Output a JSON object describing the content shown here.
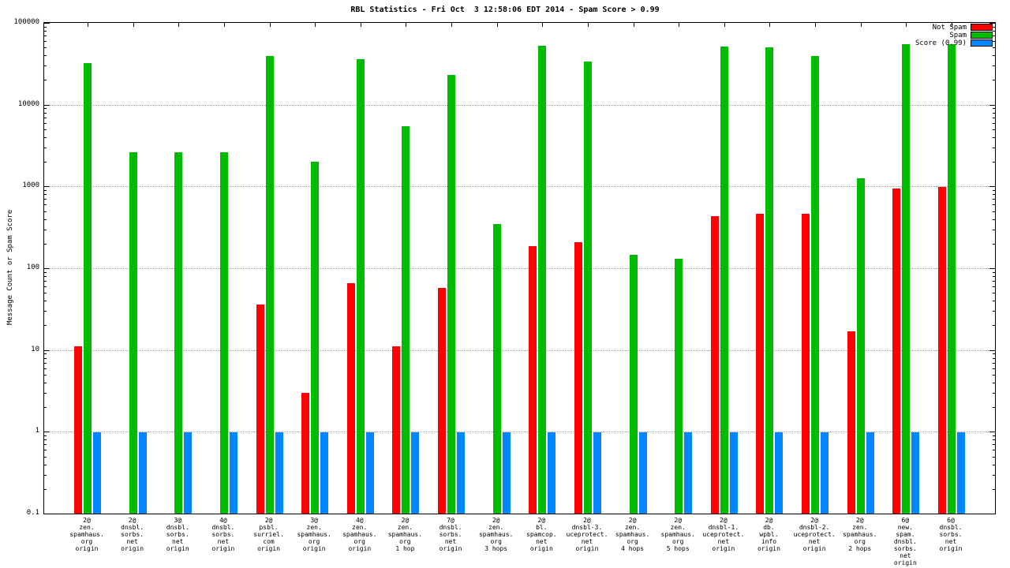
{
  "chart_data": {
    "type": "bar",
    "title": "RBL Statistics - Fri Oct  3 12:58:06 EDT 2014 - Spam Score > 0.99",
    "ylabel": "Message Count or Spam Score",
    "y_scale": "log",
    "ylim": [
      0.1,
      100000
    ],
    "yticks": [
      0.1,
      1,
      10,
      100,
      1000,
      10000,
      100000
    ],
    "grid": "horizontal-dotted",
    "legend_position": "top-right-inside",
    "categories": [
      [
        "2@",
        "zen.",
        "spamhaus.",
        "org",
        "origin"
      ],
      [
        "2@",
        "dnsbl.",
        "sorbs.",
        "net",
        "origin"
      ],
      [
        "3@",
        "dnsbl.",
        "sorbs.",
        "net",
        "origin"
      ],
      [
        "4@",
        "dnsbl.",
        "sorbs.",
        "net",
        "origin"
      ],
      [
        "2@",
        "psbl.",
        "surriel.",
        "com",
        "origin"
      ],
      [
        "3@",
        "zen.",
        "spamhaus.",
        "org",
        "origin"
      ],
      [
        "4@",
        "zen.",
        "spamhaus.",
        "org",
        "origin"
      ],
      [
        "2@",
        "zen.",
        "spamhaus.",
        "org",
        "1 hop"
      ],
      [
        "7@",
        "dnsbl.",
        "sorbs.",
        "net",
        "origin"
      ],
      [
        "2@",
        "zen.",
        "spamhaus.",
        "org",
        "3 hops"
      ],
      [
        "2@",
        "bl.",
        "spamcop.",
        "net",
        "origin"
      ],
      [
        "2@",
        "dnsbl-3.",
        "uceprotect.",
        "net",
        "origin"
      ],
      [
        "2@",
        "zen.",
        "spamhaus.",
        "org",
        "4 hops"
      ],
      [
        "2@",
        "zen.",
        "spamhaus.",
        "org",
        "5 hops"
      ],
      [
        "2@",
        "dnsbl-1.",
        "uceprotect.",
        "net",
        "origin"
      ],
      [
        "2@",
        "db.",
        "wpbl.",
        "info",
        "origin"
      ],
      [
        "2@",
        "dnsbl-2.",
        "uceprotect.",
        "net",
        "origin"
      ],
      [
        "2@",
        "zen.",
        "spamhaus.",
        "org",
        "2 hops"
      ],
      [
        "6@",
        "new.",
        "spam.",
        "dnsbl.",
        "sorbs.",
        "net",
        "origin"
      ],
      [
        "6@",
        "dnsbl.",
        "sorbs.",
        "net",
        "origin"
      ]
    ],
    "series": [
      {
        "name": "Not Spam",
        "color": "#ff0000",
        "values": [
          11,
          null,
          null,
          null,
          36,
          3,
          65,
          11,
          58,
          null,
          185,
          210,
          null,
          null,
          430,
          460,
          460,
          17,
          950,
          975
        ]
      },
      {
        "name": "Spam",
        "color": "#00bb00",
        "values": [
          32000,
          2600,
          2600,
          2600,
          39000,
          2000,
          36000,
          5500,
          23000,
          350,
          52000,
          34000,
          145,
          130,
          51000,
          50000,
          39000,
          1250,
          55000,
          55000
        ]
      },
      {
        "name": "Score (0.99)",
        "color": "#0086ff",
        "values": [
          0.99,
          0.99,
          0.99,
          0.99,
          0.99,
          0.99,
          0.99,
          0.99,
          0.99,
          0.99,
          0.99,
          0.99,
          0.99,
          0.99,
          0.99,
          0.99,
          0.99,
          0.99,
          0.99,
          0.99
        ]
      }
    ]
  }
}
